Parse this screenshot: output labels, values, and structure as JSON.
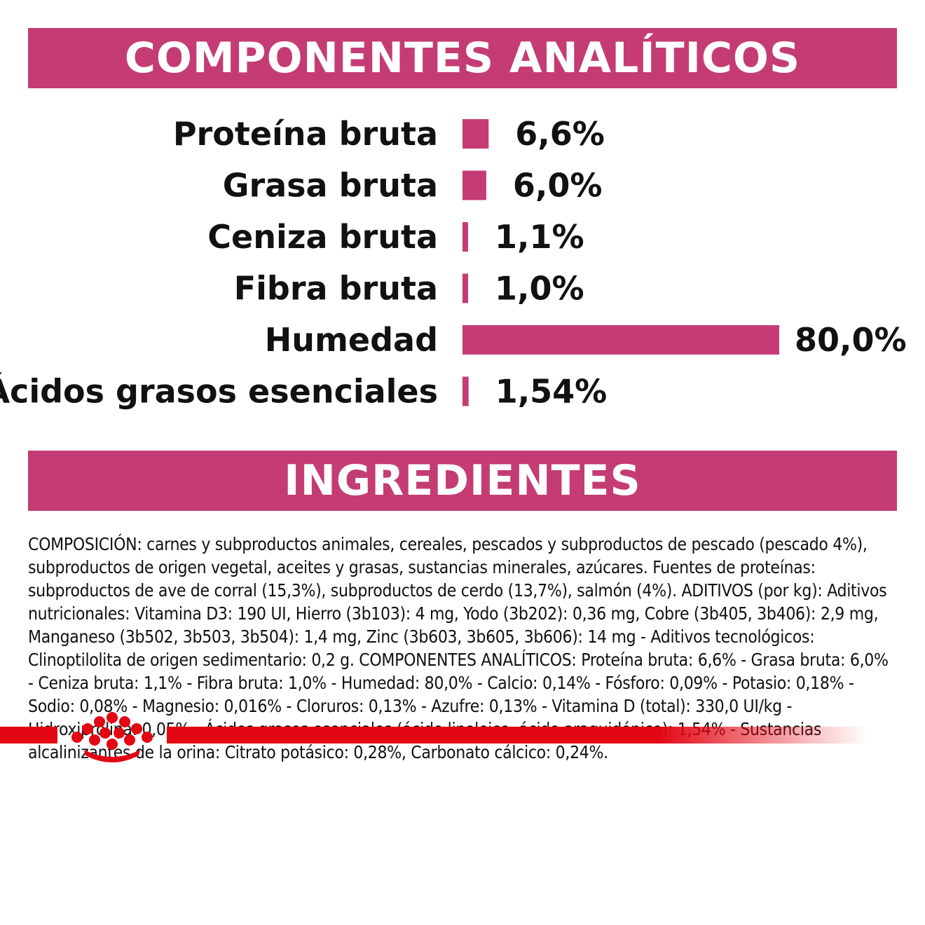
{
  "analytics": {
    "title": "COMPONENTES ANALÍTICOS"
  },
  "ingredients": {
    "title": "INGREDIENTES",
    "text": "COMPOSICIÓN: carnes y subproductos animales, cereales, pescados y subproductos de pescado (pescado 4%), subproductos de origen vegetal, aceites y grasas, sustancias minerales, azúcares. Fuentes de proteínas: subproductos de ave de corral (15,3%), subproductos de cerdo (13,7%), salmón (4%). ADITIVOS (por kg): Aditivos nutricionales: Vitamina D3: 190 UI, Hierro (3b103): 4 mg, Yodo (3b202): 0,36 mg, Cobre (3b405, 3b406): 2,9 mg, Manganeso (3b502, 3b503, 3b504): 1,4 mg, Zinc (3b603, 3b605, 3b606): 14 mg - Aditivos tecnológicos: Clinoptilolita de origen sedimentario: 0,2 g. COMPONENTES ANALÍTICOS: Proteína bruta: 6,6% - Grasa bruta: 6,0% - Ceniza bruta: 1,1% - Fibra bruta: 1,0% - Humedad: 80,0% - Calcio: 0,14% - Fósforo: 0,09% - Potasio: 0,18% - Sodio: 0,08% - Magnesio: 0,016% - Cloruros: 0,13% - Azufre: 0,13% - Vitamina D (total): 330,0 UI/kg - Hidroxiprolina: 0,05% - Ácidos grasos esenciales (ácido linoleico, ácido araquidónico): 1,54% - Sustancias alcalinizantes de la orina: Citrato potásico: 0,28%, Carbonato cálcico: 0,24%."
  },
  "colors": {
    "accent": "#c43c73",
    "brand_red": "#e30613",
    "text": "#111111"
  },
  "logo": {
    "icon": "royal-canin-crown-icon"
  },
  "chart_data": {
    "type": "bar",
    "orientation": "horizontal",
    "categories": [
      "Proteína bruta",
      "Grasa bruta",
      "Ceniza bruta",
      "Fibra bruta",
      "Humedad",
      "Ácidos grasos esenciales"
    ],
    "values": [
      6.6,
      6.0,
      1.1,
      1.0,
      80.0,
      1.54
    ],
    "value_labels": [
      "6,6%",
      "6,0%",
      "1,1%",
      "1,0%",
      "80,0%",
      "1,54%"
    ],
    "unit": "%",
    "xlim": [
      0,
      80
    ],
    "grid": false,
    "legend": "none"
  }
}
